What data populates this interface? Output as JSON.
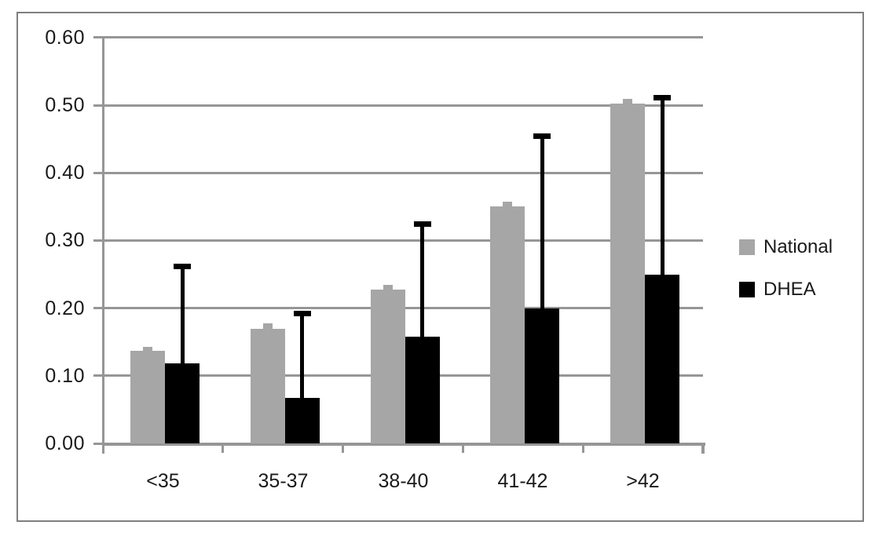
{
  "chart_data": {
    "type": "bar",
    "title": "",
    "xlabel": "",
    "ylabel": "",
    "categories": [
      "<35",
      "35-37",
      "38-40",
      "41-42",
      ">42"
    ],
    "series": [
      {
        "name": "National",
        "color": "#a6a6a6",
        "values": [
          0.137,
          0.17,
          0.228,
          0.351,
          0.503
        ],
        "error_plus": [
          0.006,
          0.007,
          0.006,
          0.006,
          0.007
        ]
      },
      {
        "name": "DHEA",
        "color": "#000000",
        "values": [
          0.118,
          0.067,
          0.158,
          0.2,
          0.25
        ],
        "error_plus": [
          0.144,
          0.126,
          0.167,
          0.255,
          0.262
        ]
      }
    ],
    "ylim": [
      0,
      0.6
    ],
    "ytick_step": 0.1,
    "ytick_labels": [
      "0.00",
      "0.10",
      "0.20",
      "0.30",
      "0.40",
      "0.50",
      "0.60"
    ],
    "grid": true,
    "legend_position": "right",
    "legend": [
      {
        "label": "National",
        "swatch_color": "#a6a6a6"
      },
      {
        "label": "DHEA",
        "swatch_color": "#000000"
      }
    ],
    "colors": {
      "gridline": "#969696",
      "axis": "#969696",
      "frame_border": "#7f7f7f",
      "text": "#1a1a1a",
      "background": "#ffffff"
    }
  }
}
